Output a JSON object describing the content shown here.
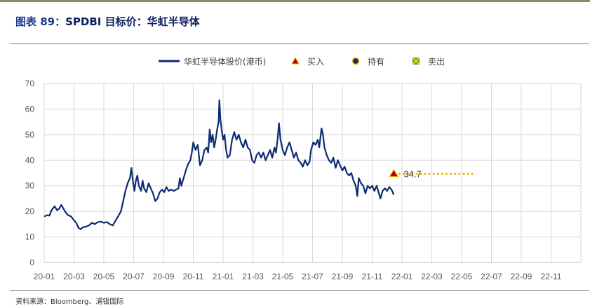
{
  "figure": {
    "number_label": "图表 89：",
    "title": "SPDBI 目标价：华虹半导体"
  },
  "source_note": "资料来源：Bloomberg、浦银国际",
  "chart_data": {
    "type": "line",
    "legend": [
      {
        "name": "华虹半导体股价(港币)",
        "marker": "line",
        "color": "#0d2a72"
      },
      {
        "name": "买入",
        "marker": "triangle",
        "color": "#c00000"
      },
      {
        "name": "持有",
        "marker": "circle",
        "color": "#0d2a72"
      },
      {
        "name": "卖出",
        "marker": "square-x",
        "color": "#5a9e3a"
      }
    ],
    "x_ticks": [
      "20-01",
      "20-03",
      "20-05",
      "20-07",
      "20-09",
      "20-11",
      "21-01",
      "21-03",
      "21-05",
      "21-07",
      "21-09",
      "21-11",
      "22-01",
      "22-03",
      "22-05",
      "22-07",
      "22-09",
      "22-11"
    ],
    "y_ticks": [
      0,
      10,
      20,
      30,
      40,
      50,
      60,
      70
    ],
    "ylim": [
      0,
      70
    ],
    "grid": true,
    "legend_position": "top-center",
    "series": [
      {
        "name": "华虹半导体股价(港币)",
        "color": "#0d2a72",
        "points": [
          [
            0.0,
            18.0
          ],
          [
            0.2,
            18.5
          ],
          [
            0.35,
            18.3
          ],
          [
            0.5,
            20.5
          ],
          [
            0.7,
            22.0
          ],
          [
            0.85,
            20.5
          ],
          [
            1.0,
            21.0
          ],
          [
            1.15,
            22.5
          ],
          [
            1.3,
            21.0
          ],
          [
            1.45,
            19.5
          ],
          [
            1.6,
            18.5
          ],
          [
            1.8,
            18.0
          ],
          [
            2.0,
            16.5
          ],
          [
            2.15,
            15.5
          ],
          [
            2.3,
            13.5
          ],
          [
            2.45,
            13.0
          ],
          [
            2.6,
            13.8
          ],
          [
            2.8,
            14.0
          ],
          [
            3.0,
            14.5
          ],
          [
            3.2,
            15.5
          ],
          [
            3.4,
            15.0
          ],
          [
            3.6,
            15.8
          ],
          [
            3.8,
            16.0
          ],
          [
            4.0,
            15.5
          ],
          [
            4.2,
            15.8
          ],
          [
            4.4,
            15.0
          ],
          [
            4.6,
            14.5
          ],
          [
            4.75,
            16.0
          ],
          [
            4.9,
            17.5
          ],
          [
            5.0,
            18.5
          ],
          [
            5.15,
            20.0
          ],
          [
            5.3,
            24.0
          ],
          [
            5.45,
            28.0
          ],
          [
            5.6,
            31.0
          ],
          [
            5.75,
            33.0
          ],
          [
            5.85,
            37.0
          ],
          [
            5.95,
            32.0
          ],
          [
            6.05,
            28.0
          ],
          [
            6.15,
            32.0
          ],
          [
            6.25,
            34.0
          ],
          [
            6.35,
            30.0
          ],
          [
            6.5,
            28.0
          ],
          [
            6.6,
            32.0
          ],
          [
            6.7,
            29.0
          ],
          [
            6.85,
            27.5
          ],
          [
            7.0,
            31.0
          ],
          [
            7.15,
            29.0
          ],
          [
            7.3,
            27.0
          ],
          [
            7.45,
            24.0
          ],
          [
            7.6,
            25.0
          ],
          [
            7.75,
            27.5
          ],
          [
            7.9,
            28.5
          ],
          [
            8.05,
            27.5
          ],
          [
            8.2,
            29.5
          ],
          [
            8.35,
            28.0
          ],
          [
            8.5,
            28.5
          ],
          [
            8.7,
            28.0
          ],
          [
            8.85,
            28.5
          ],
          [
            9.0,
            29.0
          ],
          [
            9.1,
            33.0
          ],
          [
            9.2,
            30.0
          ],
          [
            9.35,
            33.0
          ],
          [
            9.5,
            36.0
          ],
          [
            9.65,
            38.5
          ],
          [
            9.8,
            40.0
          ],
          [
            9.9,
            43.0
          ],
          [
            10.0,
            47.0
          ],
          [
            10.15,
            44.0
          ],
          [
            10.3,
            46.0
          ],
          [
            10.45,
            38.0
          ],
          [
            10.6,
            40.0
          ],
          [
            10.75,
            44.0
          ],
          [
            10.9,
            45.0
          ],
          [
            11.0,
            43.0
          ],
          [
            11.1,
            52.0
          ],
          [
            11.2,
            47.0
          ],
          [
            11.3,
            50.0
          ],
          [
            11.4,
            45.0
          ],
          [
            11.5,
            48.0
          ],
          [
            11.6,
            52.0
          ],
          [
            11.7,
            55.0
          ],
          [
            11.75,
            63.5
          ],
          [
            11.82,
            56.0
          ],
          [
            11.9,
            52.0
          ],
          [
            12.0,
            48.0
          ],
          [
            12.1,
            50.0
          ],
          [
            12.2,
            44.0
          ],
          [
            12.3,
            41.0
          ],
          [
            12.45,
            42.0
          ],
          [
            12.6,
            48.0
          ],
          [
            12.75,
            51.0
          ],
          [
            12.9,
            48.0
          ],
          [
            13.05,
            50.0
          ],
          [
            13.2,
            47.0
          ],
          [
            13.35,
            45.0
          ],
          [
            13.5,
            48.0
          ],
          [
            13.65,
            45.0
          ],
          [
            13.8,
            44.0
          ],
          [
            13.95,
            40.0
          ],
          [
            14.1,
            39.0
          ],
          [
            14.25,
            42.0
          ],
          [
            14.4,
            43.0
          ],
          [
            14.55,
            41.0
          ],
          [
            14.7,
            43.0
          ],
          [
            14.85,
            40.0
          ],
          [
            15.0,
            42.0
          ],
          [
            15.15,
            44.0
          ],
          [
            15.3,
            41.0
          ],
          [
            15.45,
            45.0
          ],
          [
            15.55,
            43.0
          ],
          [
            15.65,
            48.0
          ],
          [
            15.75,
            54.5
          ],
          [
            15.85,
            48.0
          ],
          [
            16.0,
            44.0
          ],
          [
            16.15,
            42.0
          ],
          [
            16.3,
            45.0
          ],
          [
            16.45,
            47.0
          ],
          [
            16.6,
            44.0
          ],
          [
            16.75,
            41.0
          ],
          [
            16.9,
            43.0
          ],
          [
            17.05,
            40.0
          ],
          [
            17.2,
            39.0
          ],
          [
            17.35,
            37.5
          ],
          [
            17.5,
            40.0
          ],
          [
            17.65,
            38.0
          ],
          [
            17.8,
            39.5
          ],
          [
            17.9,
            44.0
          ],
          [
            18.05,
            47.0
          ],
          [
            18.2,
            46.0
          ],
          [
            18.35,
            48.0
          ],
          [
            18.45,
            45.0
          ],
          [
            18.6,
            52.5
          ],
          [
            18.7,
            50.0
          ],
          [
            18.8,
            45.0
          ],
          [
            18.95,
            42.0
          ],
          [
            19.1,
            40.0
          ],
          [
            19.25,
            39.0
          ],
          [
            19.4,
            41.0
          ],
          [
            19.55,
            37.0
          ],
          [
            19.7,
            40.0
          ],
          [
            19.85,
            38.0
          ],
          [
            20.0,
            36.0
          ],
          [
            20.15,
            37.5
          ],
          [
            20.3,
            35.0
          ],
          [
            20.45,
            34.0
          ],
          [
            20.6,
            35.0
          ],
          [
            20.75,
            32.0
          ],
          [
            20.9,
            30.0
          ],
          [
            21.0,
            26.0
          ],
          [
            21.1,
            33.0
          ],
          [
            21.25,
            31.0
          ],
          [
            21.4,
            30.0
          ],
          [
            21.55,
            27.0
          ],
          [
            21.7,
            30.0
          ],
          [
            21.85,
            29.0
          ],
          [
            22.0,
            30.0
          ],
          [
            22.15,
            28.0
          ],
          [
            22.3,
            30.0
          ],
          [
            22.45,
            27.0
          ],
          [
            22.55,
            25.0
          ],
          [
            22.7,
            28.0
          ],
          [
            22.85,
            29.0
          ],
          [
            23.0,
            28.0
          ],
          [
            23.15,
            29.5
          ],
          [
            23.3,
            28.5
          ],
          [
            23.45,
            26.5
          ]
        ]
      }
    ],
    "annotations": [
      {
        "type": "buy",
        "x": 23.45,
        "y": 34.7,
        "label": "34.7",
        "target_line_end_x": 28.9,
        "color": "#f0b400"
      }
    ]
  }
}
